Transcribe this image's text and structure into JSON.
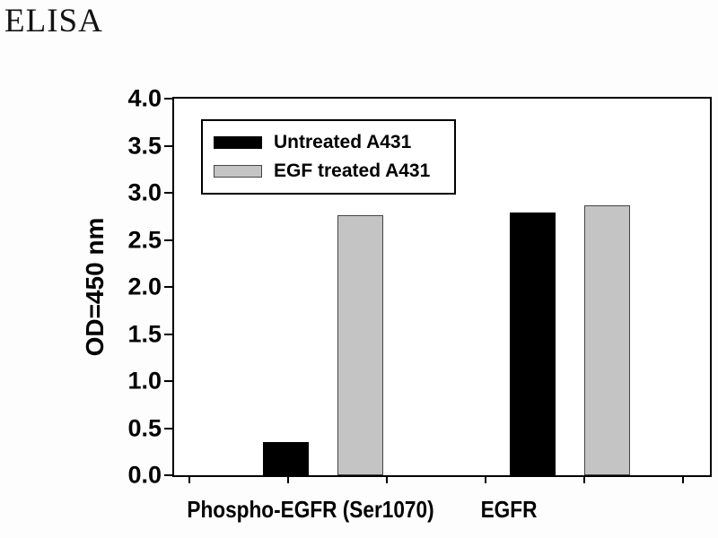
{
  "title": "ELISA",
  "chart_data": {
    "type": "bar",
    "title": "ELISA",
    "categories": [
      "Phospho-EGFR (Ser1070)",
      "EGFR"
    ],
    "series": [
      {
        "name": "Untreated A431",
        "color": "#000000",
        "values": [
          0.35,
          2.79
        ]
      },
      {
        "name": "EGF treated A431",
        "color": "#c4c4c4",
        "values": [
          2.76,
          2.87
        ]
      }
    ],
    "xlabel": "",
    "ylabel": "OD=450 nm",
    "ylim": [
      0,
      4
    ],
    "ytick_step": 0.5,
    "ytick_labels": [
      "0.0",
      "0.5",
      "1.0",
      "1.5",
      "2.0",
      "2.5",
      "3.0",
      "3.5",
      "4.0"
    ],
    "legend_position": "top-left-inside",
    "grid": false,
    "frame": true
  },
  "colors": {
    "background": "#ffffff",
    "axis": "#000000",
    "text": "#000000",
    "bar_untreated": "#000000",
    "bar_egf_treated": "#c4c4c4",
    "bar_border": "#444444"
  }
}
